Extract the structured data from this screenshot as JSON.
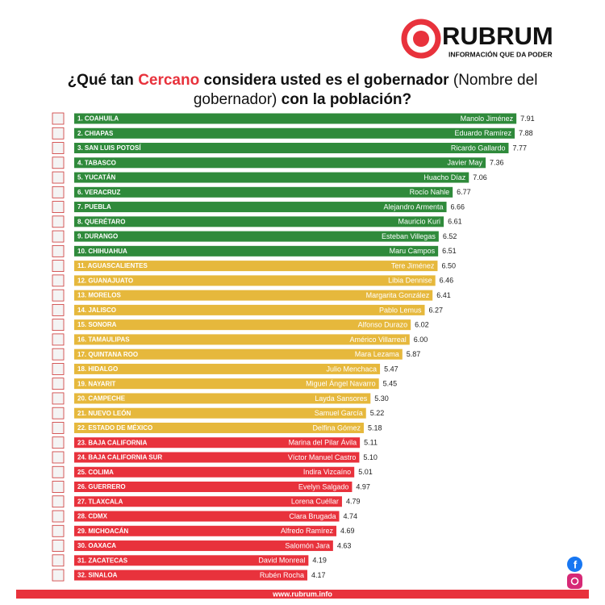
{
  "brand": {
    "name": "RUBRUM",
    "tagline": "INFORMACIÓN QUE DA PODER",
    "url": "www.rubrum.info"
  },
  "chart_data": {
    "type": "bar",
    "title": [
      "¿Qué tan ",
      "Cercano",
      " considera usted es el gobernador ",
      "(Nombre del gobernador)",
      " con la población?"
    ],
    "categories": [
      "1. COAHUILA",
      "2. CHIAPAS",
      "3. SAN LUIS POTOSÍ",
      "4. TABASCO",
      "5. YUCATÁN",
      "6. VERACRUZ",
      "7. PUEBLA",
      "8. QUERÉTARO",
      "9. DURANGO",
      "10. CHIHUAHUA",
      "11. AGUASCALIENTES",
      "12. GUANAJUATO",
      "13. MORELOS",
      "14. JALISCO",
      "15. SONORA",
      "16. TAMAULIPAS",
      "17. QUINTANA ROO",
      "18. HIDALGO",
      "19. NAYARIT",
      "20. CAMPECHE",
      "21. NUEVO LEÓN",
      "22. ESTADO DE MÉXICO",
      "23. BAJA CALIFORNIA",
      "24. BAJA CALIFORNIA SUR",
      "25. COLIMA",
      "26. GUERRERO",
      "27. TLAXCALA",
      "28. CDMX",
      "29. MICHOACÁN",
      "30. OAXACA",
      "31. ZACATECAS",
      "32. SINALOA"
    ],
    "governors": [
      "Manolo Jiménez",
      "Eduardo Ramírez",
      "Ricardo Gallardo",
      "Javier May",
      "Huacho Díaz",
      "Rocío Nahle",
      "Alejandro Armenta",
      "Mauricio Kuri",
      "Esteban Villegas",
      "Maru Campos",
      "Tere Jiménez",
      "Libia Dennise",
      "Margarita González",
      "Pablo Lemus",
      "Alfonso Durazo",
      "Américo Villarreal",
      "Mara Lezama",
      "Julio Menchaca",
      "Miguel Ángel Navarro",
      "Layda Sansores",
      "Samuel García",
      "Delfina Gómez",
      "Marina del Pilar Ávila",
      "Víctor Manuel Castro",
      "Indira Vizcaíno",
      "Evelyn Salgado",
      "Lorena Cuéllar",
      "Clara Brugada",
      "Alfredo Ramírez",
      "Salomón Jara",
      "David Monreal",
      "Rubén Rocha"
    ],
    "values": [
      7.91,
      7.88,
      7.77,
      7.36,
      7.06,
      6.77,
      6.66,
      6.61,
      6.52,
      6.51,
      6.5,
      6.46,
      6.41,
      6.27,
      6.02,
      6,
      5.87,
      5.47,
      5.45,
      5.3,
      5.22,
      5.18,
      5.11,
      5.1,
      5.01,
      4.97,
      4.79,
      4.74,
      4.69,
      4.63,
      4.19,
      4.17
    ],
    "value_labels": [
      "7.91",
      "7.88",
      "7.77",
      "7.36",
      "7.06",
      "6.77",
      "6.66",
      "6.61",
      "6.52",
      "6.51",
      "6.50",
      "6.46",
      "6.41",
      "6.27",
      "6.02",
      "6.00",
      "5.87",
      "5.47",
      "5.45",
      "5.30",
      "5.22",
      "5.18",
      "5.11",
      "5.10",
      "5.01",
      "4.97",
      "4.79",
      "4.74",
      "4.69",
      "4.63",
      "4.19",
      "4.17"
    ],
    "colors": [
      "#2f8a3b",
      "#2f8a3b",
      "#2f8a3b",
      "#2f8a3b",
      "#2f8a3b",
      "#2f8a3b",
      "#2f8a3b",
      "#2f8a3b",
      "#2f8a3b",
      "#2f8a3b",
      "#e6b83c",
      "#e6b83c",
      "#e6b83c",
      "#e6b83c",
      "#e6b83c",
      "#e6b83c",
      "#e6b83c",
      "#e6b83c",
      "#e6b83c",
      "#e6b83c",
      "#e6b83c",
      "#e6b83c",
      "#e8323c",
      "#e8323c",
      "#e8323c",
      "#e8323c",
      "#e8323c",
      "#e8323c",
      "#e8323c",
      "#e8323c",
      "#e8323c",
      "#e8323c"
    ]
  }
}
